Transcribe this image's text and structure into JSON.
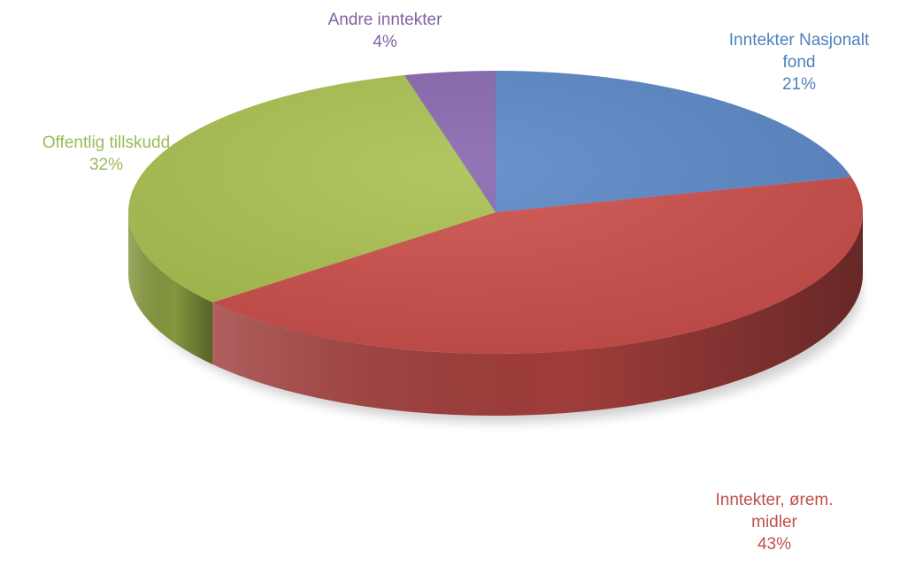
{
  "chart_data": {
    "type": "pie",
    "style": "3d",
    "title": "",
    "legend": "none",
    "slices": [
      {
        "line1": "Inntekter Nasjonalt",
        "line2": "fond",
        "value": 21,
        "percent_label": "21%",
        "color": "#5b87c6"
      },
      {
        "line1": "Inntekter, ørem.",
        "line2": "midler",
        "value": 43,
        "percent_label": "43%",
        "color": "#cc4e4b"
      },
      {
        "line1": "Offentlig tillskudd",
        "line2": "",
        "value": 32,
        "percent_label": "32%",
        "color": "#a9c04f"
      },
      {
        "line1": "Andre inntekter",
        "line2": "",
        "value": 4,
        "percent_label": "4%",
        "color": "#8767ad"
      }
    ],
    "label_colors": [
      "#4f81bd",
      "#c0504d",
      "#9bbb59",
      "#8064a2"
    ]
  }
}
